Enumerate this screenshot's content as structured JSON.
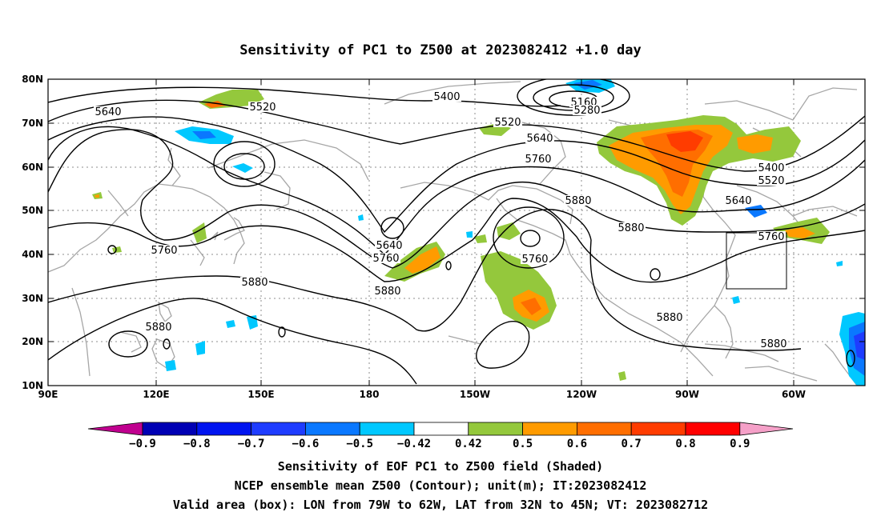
{
  "title": "Sensitivity of PC1 to Z500 at 2023082412 +1.0 day",
  "lat_ticks": [
    "80N",
    "70N",
    "60N",
    "50N",
    "40N",
    "30N",
    "20N",
    "10N"
  ],
  "lon_ticks": [
    "90E",
    "120E",
    "150E",
    "180",
    "150W",
    "120W",
    "90W",
    "60W"
  ],
  "contour_labels": [
    "5640",
    "5520",
    "5400",
    "5160",
    "5280",
    "5520",
    "5640",
    "5760",
    "5400",
    "5520",
    "5640",
    "5760",
    "5640",
    "5760",
    "5760",
    "5880",
    "5760",
    "5880",
    "5880",
    "5880",
    "5880",
    "5880",
    "5880"
  ],
  "colorbar": {
    "colors": [
      "#c0008f",
      "#0000b4",
      "#0014f0",
      "#1e3cff",
      "#0a78ff",
      "#00c8ff",
      "#ffffff",
      "#94c83c",
      "#ff9b00",
      "#ff6e00",
      "#ff3c00",
      "#ff0000",
      "#f5a0c8"
    ],
    "labels": [
      "-0.9",
      "-0.8",
      "-0.7",
      "-0.6",
      "-0.5",
      "-0.42",
      "0.42",
      "0.5",
      "0.6",
      "0.7",
      "0.8",
      "0.9"
    ]
  },
  "captions": [
    "Sensitivity of EOF PC1 to Z500 field (Shaded)",
    "NCEP ensemble mean Z500 (Contour); unit(m); IT:2023082412",
    "Valid area (box): LON from 79W to 62W, LAT from 32N to 45N; VT: 2023082712"
  ],
  "valid_box": {
    "lon_min": -79,
    "lon_max": -62,
    "lat_min": 32,
    "lat_max": 45
  }
}
